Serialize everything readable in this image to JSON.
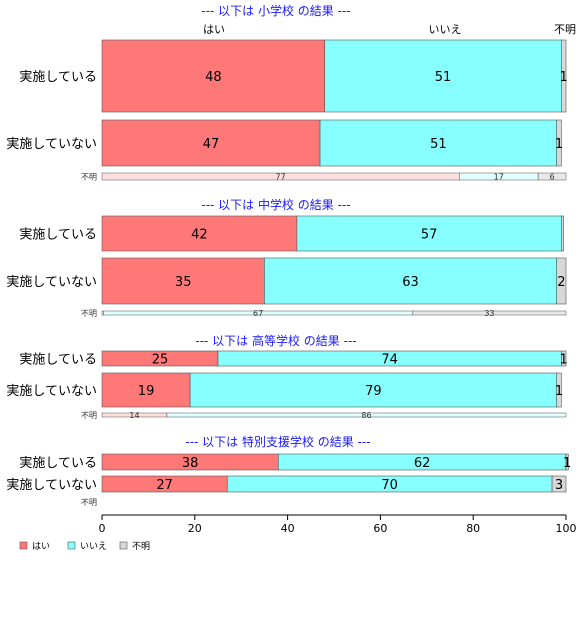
{
  "chart_data": {
    "type": "bar",
    "orientation": "horizontal",
    "stacked": "percent",
    "xlim": [
      0,
      100
    ],
    "x_ticks": [
      0,
      20,
      40,
      60,
      80,
      100
    ],
    "top_labels": [
      "はい",
      "いいえ",
      "不明"
    ],
    "legend": {
      "placement": "bottom-left",
      "entries": [
        {
          "name": "はい",
          "color": "#ff7878"
        },
        {
          "name": "いいえ",
          "color": "#87ffff"
        },
        {
          "name": "不明",
          "color": "#d8d8d8"
        }
      ]
    },
    "series_colors": [
      "#ff7878",
      "#87ffff",
      "#d8d8d8"
    ],
    "series_colors_light": [
      "#ffdede",
      "#e0ffff",
      "#e8e8e8"
    ],
    "panels": [
      {
        "title": "--- 以下は 小学校 の結果 ---",
        "rows": [
          {
            "label": "実施している",
            "values": [
              48,
              51,
              1
            ],
            "value_labels": [
              "48",
              "51",
              "1"
            ]
          },
          {
            "label": "実施していない",
            "values": [
              47,
              51,
              1
            ],
            "value_labels": [
              "47",
              "51",
              "1"
            ]
          },
          {
            "label": "不明",
            "thin": true,
            "values": [
              77,
              17,
              6
            ],
            "value_labels": [
              "77",
              "17",
              "6"
            ]
          }
        ]
      },
      {
        "title": "--- 以下は 中学校 の結果 ---",
        "rows": [
          {
            "label": "実施している",
            "values": [
              42,
              57,
              0.5
            ],
            "value_labels": [
              "42",
              "57",
              ""
            ]
          },
          {
            "label": "実施していない",
            "values": [
              35,
              63,
              2
            ],
            "value_labels": [
              "35",
              "63",
              "2"
            ]
          },
          {
            "label": "不明",
            "thin": true,
            "values": [
              0.3,
              66.7,
              33
            ],
            "value_labels": [
              "",
              "67",
              "33"
            ]
          }
        ]
      },
      {
        "title": "--- 以下は 高等学校 の結果 ---",
        "rows": [
          {
            "label": "実施している",
            "values": [
              25,
              74,
              1
            ],
            "value_labels": [
              "25",
              "74",
              "1"
            ]
          },
          {
            "label": "実施していない",
            "values": [
              19,
              79,
              1
            ],
            "value_labels": [
              "19",
              "79",
              "1"
            ]
          },
          {
            "label": "不明",
            "thin": true,
            "values": [
              14,
              86,
              0
            ],
            "value_labels": [
              "14",
              "86",
              ""
            ]
          }
        ]
      },
      {
        "title": "--- 以下は 特別支援学校 の結果 ---",
        "rows": [
          {
            "label": "実施している",
            "values": [
              38,
              62,
              0.5
            ],
            "value_labels": [
              "38",
              "62",
              "1"
            ]
          },
          {
            "label": "実施していない",
            "values": [
              27,
              70,
              3
            ],
            "value_labels": [
              "27",
              "70",
              "3"
            ]
          },
          {
            "label": "不明",
            "thin": true,
            "empty": true,
            "values": [
              0,
              0,
              0
            ],
            "value_labels": [
              "",
              "",
              ""
            ]
          }
        ]
      }
    ]
  }
}
